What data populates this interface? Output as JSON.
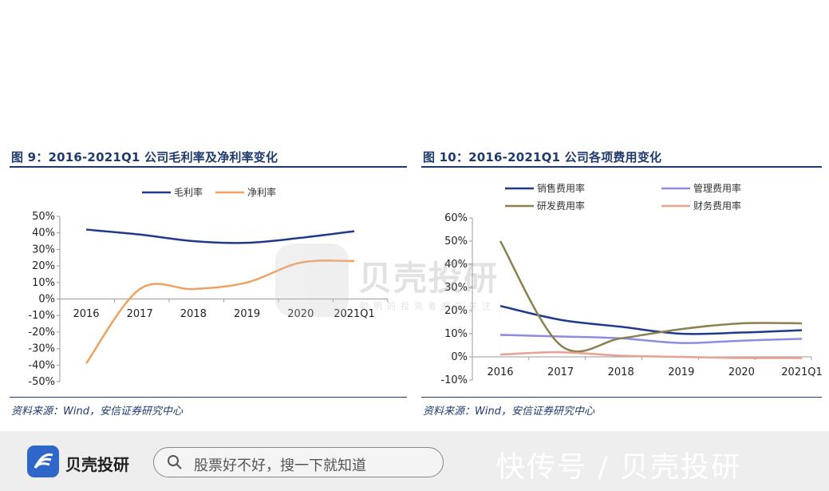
{
  "charts": [
    {
      "fig_title": "图 9：2016-2021Q1 公司毛利率及净利率变化",
      "source": "资料来源：Wind，安信证券研究中心"
    },
    {
      "fig_title": "图 10：2016-2021Q1 公司各项费用变化",
      "source": "资料来源：Wind，安信证券研究中心"
    }
  ],
  "chart_data": [
    {
      "type": "line",
      "categories": [
        "2016",
        "2017",
        "2018",
        "2019",
        "2020",
        "2021Q1"
      ],
      "series": [
        {
          "name": "毛利率",
          "color": "#1f3a8a",
          "values": [
            42,
            39,
            35,
            34,
            37,
            41
          ]
        },
        {
          "name": "净利率",
          "color": "#f0a060",
          "values": [
            -39,
            6,
            6,
            10,
            22,
            23
          ]
        }
      ],
      "ylim": [
        -50,
        50
      ],
      "yticks": [
        "50%",
        "40%",
        "30%",
        "20%",
        "10%",
        "0%",
        "-10%",
        "-20%",
        "-30%",
        "-40%",
        "-50%"
      ],
      "legend_position": "top-center",
      "grid": false
    },
    {
      "type": "line",
      "categories": [
        "2016",
        "2017",
        "2018",
        "2019",
        "2020",
        "2021Q1"
      ],
      "series": [
        {
          "name": "销售费用率",
          "color": "#1f3a8a",
          "values": [
            22,
            16,
            13,
            10,
            10.5,
            11.5
          ]
        },
        {
          "name": "管理费用率",
          "color": "#8c8ce0",
          "values": [
            9.5,
            8.8,
            8,
            6,
            7,
            7.8
          ]
        },
        {
          "name": "研发费用率",
          "color": "#8a8050",
          "values": [
            50,
            5,
            8,
            12,
            14.5,
            14.5
          ]
        },
        {
          "name": "财务费用率",
          "color": "#e8a090",
          "values": [
            1,
            2,
            0.5,
            0,
            -0.5,
            -0.5
          ]
        }
      ],
      "ylim": [
        -10,
        60
      ],
      "yticks": [
        "60%",
        "50%",
        "40%",
        "30%",
        "20%",
        "10%",
        "0%",
        "-10%"
      ],
      "legend_position": "top",
      "grid": false
    }
  ],
  "watermark": {
    "name": "贝壳投研",
    "slogan": "聪明的投资者都在关注"
  },
  "bottom_bar": {
    "brand": "贝壳投研",
    "search_placeholder": "股票好不好，搜一下就知道",
    "right_text": "快传号 / 贝壳投研"
  }
}
